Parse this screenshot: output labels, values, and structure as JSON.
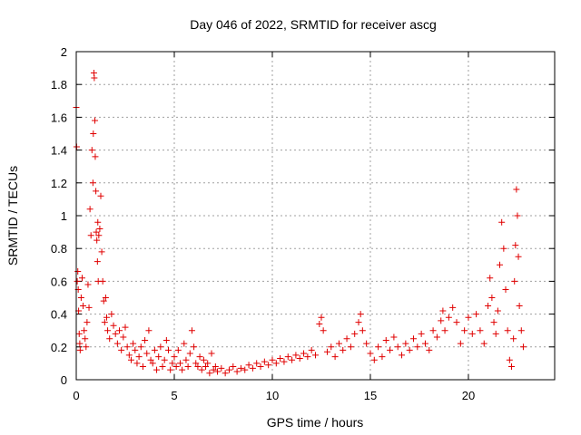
{
  "chart_data": {
    "type": "scatter",
    "title": "Day 046 of 2022, SRMTID for receiver ascg",
    "xlabel": "GPS time / hours",
    "ylabel": "SRMTID / TECUs",
    "xlim": [
      0,
      24.4
    ],
    "ylim": [
      0,
      2
    ],
    "xticks": [
      0,
      5,
      10,
      15,
      20
    ],
    "yticks": [
      0,
      0.2,
      0.4,
      0.6,
      0.8,
      1,
      1.2,
      1.4,
      1.6,
      1.8,
      2
    ],
    "xtick_labels": [
      "0",
      "5",
      "10",
      "15",
      "20"
    ],
    "ytick_labels": [
      "0",
      "0.2",
      "0.4",
      "0.6",
      "0.8",
      "1",
      "1.2",
      "1.4",
      "1.6",
      "1.8",
      "2"
    ],
    "grid": true,
    "marker": "+",
    "color": "#e00000",
    "series": [
      {
        "name": "SRMTID",
        "points": [
          [
            0.0,
            1.66
          ],
          [
            0.02,
            1.42
          ],
          [
            0.05,
            0.6
          ],
          [
            0.08,
            0.66
          ],
          [
            0.1,
            0.55
          ],
          [
            0.12,
            0.42
          ],
          [
            0.15,
            0.28
          ],
          [
            0.18,
            0.22
          ],
          [
            0.2,
            0.18
          ],
          [
            0.25,
            0.5
          ],
          [
            0.3,
            0.62
          ],
          [
            0.35,
            0.45
          ],
          [
            0.4,
            0.3
          ],
          [
            0.45,
            0.25
          ],
          [
            0.5,
            0.2
          ],
          [
            0.55,
            0.35
          ],
          [
            0.6,
            0.58
          ],
          [
            0.65,
            0.44
          ],
          [
            0.7,
            1.04
          ],
          [
            0.75,
            0.88
          ],
          [
            0.8,
            1.4
          ],
          [
            0.85,
            1.2
          ],
          [
            0.87,
            1.5
          ],
          [
            0.9,
            1.87
          ],
          [
            0.92,
            1.84
          ],
          [
            0.95,
            1.58
          ],
          [
            0.97,
            1.36
          ],
          [
            1.0,
            1.15
          ],
          [
            1.02,
            0.9
          ],
          [
            1.05,
            0.85
          ],
          [
            1.08,
            0.72
          ],
          [
            1.1,
            0.96
          ],
          [
            1.12,
            0.6
          ],
          [
            1.15,
            0.88
          ],
          [
            1.2,
            0.92
          ],
          [
            1.25,
            1.12
          ],
          [
            1.3,
            0.78
          ],
          [
            1.35,
            0.6
          ],
          [
            1.4,
            0.48
          ],
          [
            1.45,
            0.35
          ],
          [
            1.5,
            0.5
          ],
          [
            1.55,
            0.38
          ],
          [
            1.6,
            0.3
          ],
          [
            1.7,
            0.25
          ],
          [
            1.8,
            0.4
          ],
          [
            1.9,
            0.33
          ],
          [
            2.0,
            0.28
          ],
          [
            2.1,
            0.22
          ],
          [
            2.2,
            0.3
          ],
          [
            2.3,
            0.18
          ],
          [
            2.4,
            0.26
          ],
          [
            2.5,
            0.32
          ],
          [
            2.6,
            0.2
          ],
          [
            2.7,
            0.15
          ],
          [
            2.8,
            0.12
          ],
          [
            2.9,
            0.22
          ],
          [
            3.0,
            0.18
          ],
          [
            3.1,
            0.1
          ],
          [
            3.2,
            0.14
          ],
          [
            3.3,
            0.2
          ],
          [
            3.4,
            0.08
          ],
          [
            3.5,
            0.24
          ],
          [
            3.6,
            0.16
          ],
          [
            3.7,
            0.3
          ],
          [
            3.8,
            0.12
          ],
          [
            3.9,
            0.1
          ],
          [
            4.0,
            0.18
          ],
          [
            4.1,
            0.06
          ],
          [
            4.2,
            0.14
          ],
          [
            4.3,
            0.2
          ],
          [
            4.4,
            0.08
          ],
          [
            4.5,
            0.12
          ],
          [
            4.6,
            0.24
          ],
          [
            4.7,
            0.18
          ],
          [
            4.8,
            0.06
          ],
          [
            4.9,
            0.1
          ],
          [
            5.0,
            0.14
          ],
          [
            5.1,
            0.08
          ],
          [
            5.2,
            0.18
          ],
          [
            5.3,
            0.1
          ],
          [
            5.4,
            0.06
          ],
          [
            5.5,
            0.22
          ],
          [
            5.6,
            0.12
          ],
          [
            5.7,
            0.08
          ],
          [
            5.8,
            0.16
          ],
          [
            5.9,
            0.3
          ],
          [
            6.0,
            0.2
          ],
          [
            6.1,
            0.1
          ],
          [
            6.2,
            0.08
          ],
          [
            6.3,
            0.14
          ],
          [
            6.4,
            0.06
          ],
          [
            6.5,
            0.12
          ],
          [
            6.6,
            0.08
          ],
          [
            6.7,
            0.1
          ],
          [
            6.8,
            0.04
          ],
          [
            6.9,
            0.16
          ],
          [
            7.0,
            0.06
          ],
          [
            7.1,
            0.08
          ],
          [
            7.2,
            0.05
          ],
          [
            7.4,
            0.07
          ],
          [
            7.6,
            0.04
          ],
          [
            7.8,
            0.06
          ],
          [
            8.0,
            0.08
          ],
          [
            8.2,
            0.05
          ],
          [
            8.4,
            0.07
          ],
          [
            8.6,
            0.06
          ],
          [
            8.8,
            0.09
          ],
          [
            9.0,
            0.07
          ],
          [
            9.2,
            0.1
          ],
          [
            9.4,
            0.08
          ],
          [
            9.6,
            0.11
          ],
          [
            9.8,
            0.09
          ],
          [
            10.0,
            0.12
          ],
          [
            10.2,
            0.1
          ],
          [
            10.4,
            0.13
          ],
          [
            10.6,
            0.11
          ],
          [
            10.8,
            0.14
          ],
          [
            11.0,
            0.12
          ],
          [
            11.2,
            0.15
          ],
          [
            11.4,
            0.13
          ],
          [
            11.6,
            0.16
          ],
          [
            11.8,
            0.14
          ],
          [
            12.0,
            0.18
          ],
          [
            12.2,
            0.15
          ],
          [
            12.4,
            0.34
          ],
          [
            12.5,
            0.38
          ],
          [
            12.6,
            0.3
          ],
          [
            12.8,
            0.17
          ],
          [
            13.0,
            0.2
          ],
          [
            13.2,
            0.14
          ],
          [
            13.4,
            0.22
          ],
          [
            13.6,
            0.18
          ],
          [
            13.8,
            0.25
          ],
          [
            14.0,
            0.2
          ],
          [
            14.2,
            0.28
          ],
          [
            14.4,
            0.35
          ],
          [
            14.5,
            0.4
          ],
          [
            14.6,
            0.3
          ],
          [
            14.8,
            0.22
          ],
          [
            15.0,
            0.16
          ],
          [
            15.2,
            0.12
          ],
          [
            15.4,
            0.2
          ],
          [
            15.6,
            0.14
          ],
          [
            15.8,
            0.24
          ],
          [
            16.0,
            0.18
          ],
          [
            16.2,
            0.26
          ],
          [
            16.4,
            0.2
          ],
          [
            16.6,
            0.15
          ],
          [
            16.8,
            0.22
          ],
          [
            17.0,
            0.18
          ],
          [
            17.2,
            0.25
          ],
          [
            17.4,
            0.2
          ],
          [
            17.6,
            0.28
          ],
          [
            17.8,
            0.22
          ],
          [
            18.0,
            0.18
          ],
          [
            18.2,
            0.3
          ],
          [
            18.4,
            0.26
          ],
          [
            18.6,
            0.36
          ],
          [
            18.7,
            0.42
          ],
          [
            18.8,
            0.3
          ],
          [
            19.0,
            0.38
          ],
          [
            19.2,
            0.44
          ],
          [
            19.4,
            0.35
          ],
          [
            19.6,
            0.22
          ],
          [
            19.8,
            0.3
          ],
          [
            20.0,
            0.38
          ],
          [
            20.2,
            0.28
          ],
          [
            20.4,
            0.4
          ],
          [
            20.6,
            0.3
          ],
          [
            20.8,
            0.22
          ],
          [
            21.0,
            0.45
          ],
          [
            21.1,
            0.62
          ],
          [
            21.2,
            0.5
          ],
          [
            21.3,
            0.35
          ],
          [
            21.4,
            0.28
          ],
          [
            21.5,
            0.42
          ],
          [
            21.6,
            0.7
          ],
          [
            21.7,
            0.96
          ],
          [
            21.8,
            0.8
          ],
          [
            21.9,
            0.55
          ],
          [
            22.0,
            0.3
          ],
          [
            22.1,
            0.12
          ],
          [
            22.2,
            0.08
          ],
          [
            22.3,
            0.25
          ],
          [
            22.35,
            0.6
          ],
          [
            22.4,
            0.82
          ],
          [
            22.45,
            1.16
          ],
          [
            22.5,
            1.0
          ],
          [
            22.55,
            0.75
          ],
          [
            22.6,
            0.45
          ],
          [
            22.7,
            0.3
          ],
          [
            22.8,
            0.2
          ]
        ]
      }
    ]
  }
}
